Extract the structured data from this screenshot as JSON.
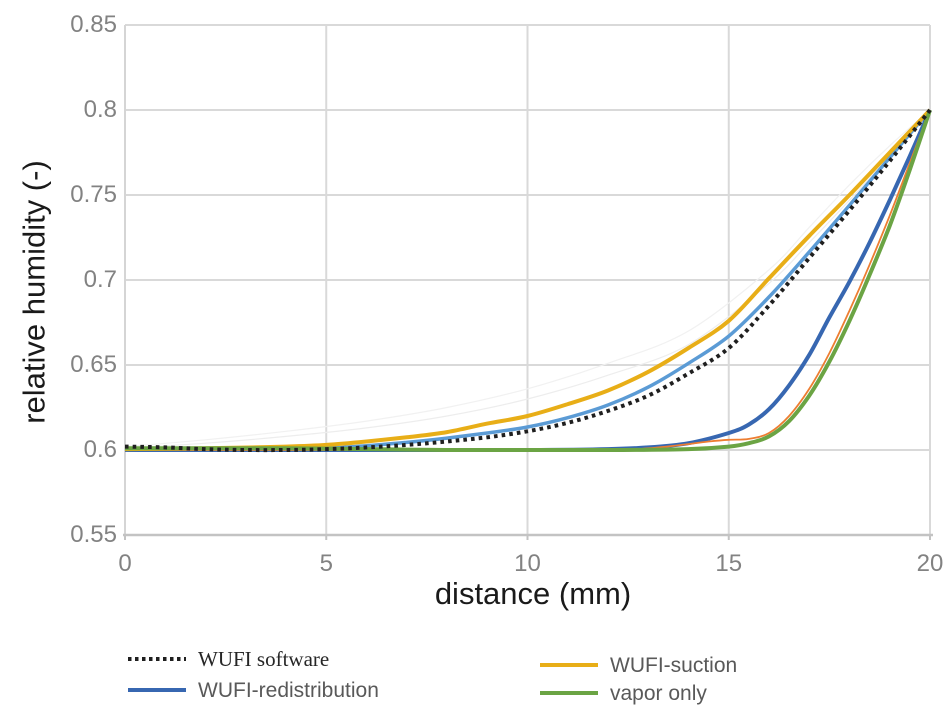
{
  "chart_data": {
    "type": "line",
    "title": "",
    "xlabel": "distance (mm)",
    "ylabel": "relative humidity (-)",
    "xlim": [
      0,
      20
    ],
    "ylim": [
      0.55,
      0.85
    ],
    "grid": true,
    "legend_position": "bottom",
    "x_ticks": {
      "values": [
        0,
        5,
        10,
        15,
        20
      ],
      "labels": [
        "0",
        "5",
        "10",
        "15",
        "20"
      ]
    },
    "y_ticks": {
      "values": [
        0.55,
        0.6,
        0.65,
        0.7,
        0.75,
        0.8,
        0.85
      ],
      "labels": [
        "0.55",
        "0.6",
        "0.65",
        "0.7",
        "0.75",
        "0.8",
        "0.85"
      ]
    },
    "colors": {
      "gridline": "#d9d9d9",
      "axis_line": "#c3c3c3",
      "tick_text": "#828282",
      "axis_title_text": "#1a1a1a"
    },
    "series": [
      {
        "id": "faint-1",
        "name": "unlabeled faint light line 1",
        "color": "#f1f1f1",
        "width": 1.2,
        "dash": null,
        "in_legend": false,
        "points": [
          [
            0,
            0.602
          ],
          [
            2,
            0.606
          ],
          [
            4,
            0.611
          ],
          [
            6,
            0.617
          ],
          [
            8,
            0.625
          ],
          [
            10,
            0.636
          ],
          [
            12,
            0.651
          ],
          [
            14,
            0.67
          ],
          [
            16,
            0.706
          ],
          [
            17,
            0.731
          ],
          [
            18,
            0.756
          ],
          [
            19,
            0.779
          ],
          [
            20,
            0.8
          ]
        ]
      },
      {
        "id": "faint-2",
        "name": "unlabeled faint light line 2",
        "color": "#ededed",
        "width": 1.2,
        "dash": null,
        "in_legend": false,
        "points": [
          [
            0,
            0.601
          ],
          [
            2,
            0.604
          ],
          [
            4,
            0.608
          ],
          [
            6,
            0.613
          ],
          [
            8,
            0.62
          ],
          [
            10,
            0.63
          ],
          [
            12,
            0.644
          ],
          [
            14,
            0.662
          ],
          [
            16,
            0.698
          ],
          [
            17,
            0.722
          ],
          [
            18,
            0.747
          ],
          [
            19,
            0.773
          ],
          [
            20,
            0.8
          ]
        ]
      },
      {
        "id": "unlabeled-light-blue",
        "name": "unlabeled light blue line",
        "color": "#5b9bd5",
        "width": 3.5,
        "dash": null,
        "in_legend": false,
        "points": [
          [
            0,
            0.6005
          ],
          [
            2,
            0.6
          ],
          [
            4,
            0.6005
          ],
          [
            5,
            0.601
          ],
          [
            6,
            0.6025
          ],
          [
            7,
            0.6045
          ],
          [
            8,
            0.607
          ],
          [
            9,
            0.61
          ],
          [
            10,
            0.6135
          ],
          [
            11,
            0.619
          ],
          [
            12,
            0.6265
          ],
          [
            13,
            0.637
          ],
          [
            14,
            0.651
          ],
          [
            15,
            0.667
          ],
          [
            16,
            0.69
          ],
          [
            17,
            0.7165
          ],
          [
            18,
            0.744
          ],
          [
            19,
            0.772
          ],
          [
            20,
            0.8
          ]
        ]
      },
      {
        "id": "wufi-redistribution",
        "name": "WUFI-redistribution",
        "color": "#3767b1",
        "width": 4,
        "dash": null,
        "in_legend": true,
        "points": [
          [
            0,
            0.6
          ],
          [
            2,
            0.6
          ],
          [
            4,
            0.6
          ],
          [
            6,
            0.6
          ],
          [
            8,
            0.6
          ],
          [
            10,
            0.6
          ],
          [
            12,
            0.6005
          ],
          [
            13,
            0.6015
          ],
          [
            14,
            0.604
          ],
          [
            15,
            0.61
          ],
          [
            15.5,
            0.615
          ],
          [
            16,
            0.624
          ],
          [
            16.5,
            0.638
          ],
          [
            17,
            0.656
          ],
          [
            17.5,
            0.678
          ],
          [
            18,
            0.699
          ],
          [
            18.5,
            0.722
          ],
          [
            19,
            0.747
          ],
          [
            19.5,
            0.773
          ],
          [
            20,
            0.8
          ]
        ]
      },
      {
        "id": "unlabeled-orange",
        "name": "unlabeled thin orange line",
        "color": "#ed7d31",
        "width": 1.8,
        "dash": null,
        "in_legend": false,
        "points": [
          [
            0,
            0.6
          ],
          [
            4,
            0.6
          ],
          [
            8,
            0.6
          ],
          [
            12,
            0.6
          ],
          [
            13,
            0.601
          ],
          [
            14,
            0.6035
          ],
          [
            14.5,
            0.605
          ],
          [
            15,
            0.606
          ],
          [
            15.5,
            0.6065
          ],
          [
            16,
            0.61
          ],
          [
            16.5,
            0.62
          ],
          [
            17,
            0.636
          ],
          [
            17.5,
            0.657
          ],
          [
            18,
            0.682
          ],
          [
            18.5,
            0.709
          ],
          [
            19,
            0.738
          ],
          [
            19.5,
            0.769
          ],
          [
            20,
            0.8
          ]
        ]
      },
      {
        "id": "wufi-suction",
        "name": "WUFI-suction",
        "color": "#e8ae17",
        "width": 4,
        "dash": null,
        "in_legend": true,
        "points": [
          [
            0,
            0.6005
          ],
          [
            2,
            0.601
          ],
          [
            4,
            0.602
          ],
          [
            5,
            0.603
          ],
          [
            6,
            0.605
          ],
          [
            7,
            0.6075
          ],
          [
            8,
            0.6105
          ],
          [
            9,
            0.6155
          ],
          [
            10,
            0.62
          ],
          [
            11,
            0.627
          ],
          [
            12,
            0.635
          ],
          [
            13,
            0.646
          ],
          [
            14,
            0.66
          ],
          [
            15,
            0.676
          ],
          [
            16,
            0.701
          ],
          [
            17,
            0.726
          ],
          [
            18,
            0.75
          ],
          [
            19,
            0.775
          ],
          [
            20,
            0.8
          ]
        ]
      },
      {
        "id": "vapor-only",
        "name": "vapor only",
        "color": "#6ba444",
        "width": 4,
        "dash": null,
        "in_legend": true,
        "points": [
          [
            0,
            0.601
          ],
          [
            2,
            0.601
          ],
          [
            4,
            0.601
          ],
          [
            6,
            0.6005
          ],
          [
            8,
            0.6
          ],
          [
            10,
            0.6
          ],
          [
            12,
            0.6
          ],
          [
            14,
            0.6005
          ],
          [
            15,
            0.602
          ],
          [
            15.5,
            0.604
          ],
          [
            16,
            0.608
          ],
          [
            16.5,
            0.617
          ],
          [
            17,
            0.632
          ],
          [
            17.5,
            0.652
          ],
          [
            18,
            0.676
          ],
          [
            18.5,
            0.703
          ],
          [
            19,
            0.732
          ],
          [
            19.5,
            0.765
          ],
          [
            20,
            0.8
          ]
        ]
      },
      {
        "id": "wufi-software",
        "name": "WUFI software",
        "color": "#1f1f1f",
        "width": 4,
        "dash": "3.6 4.1",
        "in_legend": true,
        "points": [
          [
            0,
            0.602
          ],
          [
            1,
            0.6015
          ],
          [
            2,
            0.6005
          ],
          [
            3,
            0.6
          ],
          [
            4,
            0.6
          ],
          [
            5,
            0.6005
          ],
          [
            6,
            0.6015
          ],
          [
            7,
            0.603
          ],
          [
            8,
            0.605
          ],
          [
            9,
            0.6075
          ],
          [
            10,
            0.611
          ],
          [
            11,
            0.616
          ],
          [
            12,
            0.623
          ],
          [
            13,
            0.632
          ],
          [
            14,
            0.645
          ],
          [
            15,
            0.66
          ],
          [
            16,
            0.685
          ],
          [
            17,
            0.713
          ],
          [
            18,
            0.741
          ],
          [
            19,
            0.77
          ],
          [
            20,
            0.8
          ]
        ]
      }
    ]
  },
  "legend": {
    "items": [
      {
        "label": "WUFI software",
        "series": "wufi-software"
      },
      {
        "label": "WUFI-redistribution",
        "series": "wufi-redistribution"
      },
      {
        "label": "WUFI-suction",
        "series": "wufi-suction"
      },
      {
        "label": "vapor only",
        "series": "vapor-only"
      }
    ]
  }
}
